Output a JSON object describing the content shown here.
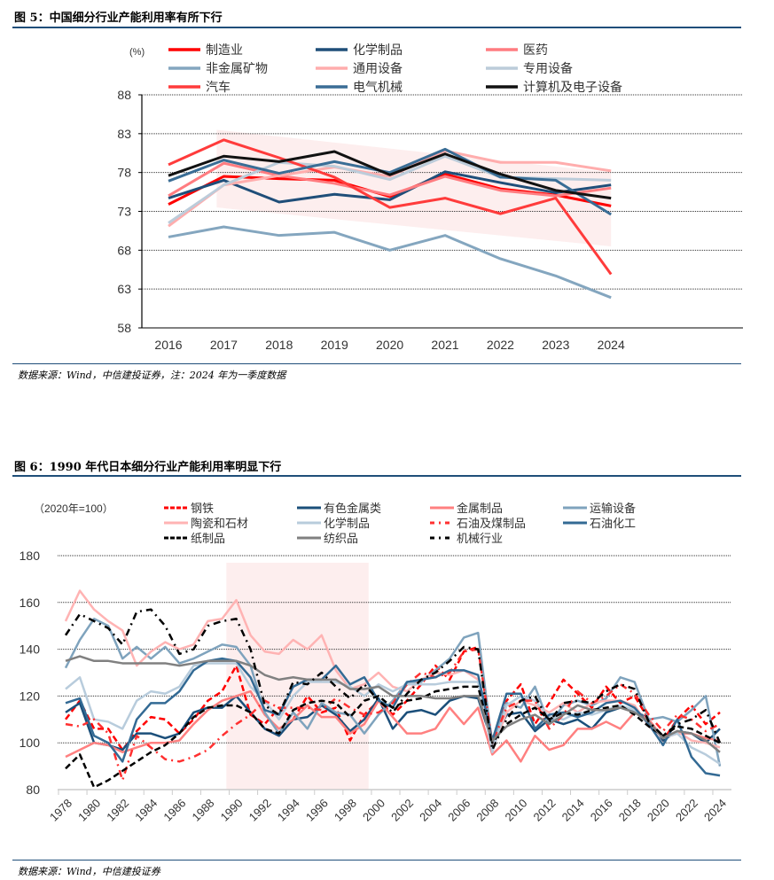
{
  "figure5": {
    "title": "图 5：中国细分行业产能利用率有所下行",
    "source": "数据来源：Wind，中信建投证券，注：2024 年为一季度数据"
  },
  "figure6": {
    "title": "图 6：1990 年代日本细分行业产能利用率明显下行",
    "source": "数据来源：Wind，中信建投证券"
  },
  "chart_data": [
    {
      "type": "line",
      "unit_label": "(%)",
      "x": [
        2016,
        2017,
        2018,
        2019,
        2020,
        2021,
        2022,
        2023,
        2024
      ],
      "ylim": [
        58,
        88
      ],
      "yticks": [
        58,
        63,
        68,
        73,
        78,
        83,
        88
      ],
      "grid": true,
      "legend_placement": "top",
      "shaded_band": {
        "x": [
          2017,
          2024
        ],
        "upper": [
          83.5,
          78
        ],
        "lower": [
          73.5,
          68.5
        ],
        "color": "#FDEEEE"
      },
      "series": [
        {
          "name": "制造业",
          "color": "#FF0000",
          "style": "solid",
          "values": [
            73.9,
            77.5,
            77.2,
            77.0,
            74.9,
            77.8,
            75.9,
            75.1,
            73.7
          ]
        },
        {
          "name": "化学制品",
          "color": "#1F4E79",
          "style": "solid",
          "values": [
            74.7,
            77.0,
            74.2,
            75.2,
            74.5,
            78.1,
            76.7,
            75.4,
            76.4
          ]
        },
        {
          "name": "医药",
          "color": "#FF7C80",
          "style": "solid",
          "values": [
            75.0,
            79.2,
            77.6,
            76.6,
            75.1,
            77.5,
            75.7,
            75.0,
            76.0
          ]
        },
        {
          "name": "非金属矿物",
          "color": "#84A6BF",
          "style": "solid",
          "values": [
            69.7,
            71.0,
            69.9,
            70.3,
            68.0,
            69.9,
            66.9,
            64.7,
            61.9
          ]
        },
        {
          "name": "通用设备",
          "color": "#FFADAD",
          "style": "solid",
          "values": [
            71.1,
            76.4,
            77.6,
            78.7,
            77.5,
            80.8,
            79.3,
            79.3,
            78.2
          ]
        },
        {
          "name": "专用设备",
          "color": "#BCCCDA",
          "style": "solid",
          "values": [
            71.5,
            76.4,
            79.3,
            78.8,
            77.1,
            80.1,
            77.4,
            77.2,
            77.0
          ]
        },
        {
          "name": "汽车",
          "color": "#FF3B3B",
          "style": "solid",
          "values": [
            79.0,
            82.2,
            79.9,
            77.4,
            73.5,
            74.7,
            72.7,
            74.7,
            64.9
          ]
        },
        {
          "name": "电气机械",
          "color": "#3A6D95",
          "style": "solid",
          "values": [
            76.9,
            79.6,
            77.9,
            79.4,
            78.0,
            81.0,
            77.4,
            77.0,
            72.6
          ]
        },
        {
          "name": "计算机及电子设备",
          "color": "#111111",
          "style": "solid",
          "values": [
            77.6,
            80.1,
            79.4,
            80.7,
            77.7,
            80.4,
            77.8,
            75.7,
            74.7
          ]
        }
      ]
    },
    {
      "type": "line",
      "unit_label": "（2020年=100）",
      "x_start": 1978,
      "x_end": 2024,
      "xticks": [
        1978,
        1980,
        1982,
        1984,
        1986,
        1988,
        1990,
        1992,
        1994,
        1996,
        1998,
        2000,
        2002,
        2004,
        2006,
        2008,
        2010,
        2012,
        2014,
        2016,
        2018,
        2020,
        2022,
        2024
      ],
      "ylim": [
        80,
        180
      ],
      "yticks": [
        80,
        100,
        120,
        140,
        160,
        180
      ],
      "grid": true,
      "legend_placement": "top",
      "shaded_band": {
        "x": [
          1989.3,
          1999.3
        ],
        "color": "#FDEEEE"
      },
      "series": [
        {
          "name": "钢铁",
          "color": "#FF0000",
          "style": "dashed",
          "values": [
            110,
            118,
            106,
            106,
            97,
            105,
            111,
            110,
            104,
            110,
            118,
            122,
            133,
            112,
            108,
            115,
            110,
            120,
            113,
            115,
            101,
            112,
            118,
            112,
            118,
            125,
            133,
            127,
            139,
            141,
            100,
            118,
            125,
            108,
            117,
            127,
            121,
            115,
            124,
            117,
            120,
            110,
            101,
            110,
            116,
            108,
            113
          ]
        },
        {
          "name": "有色金属类",
          "color": "#1B4F7A",
          "style": "solid",
          "values": [
            113,
            117,
            100,
            99,
            97,
            104,
            104,
            102,
            104,
            113,
            115,
            115,
            120,
            113,
            106,
            103,
            110,
            111,
            116,
            112,
            105,
            110,
            119,
            106,
            113,
            114,
            112,
            118,
            120,
            119,
            100,
            112,
            113,
            105,
            110,
            108,
            110,
            106,
            113,
            115,
            114,
            110,
            101,
            105,
            104,
            100,
            106
          ]
        },
        {
          "name": "金属制品",
          "color": "#FF8080",
          "style": "solid",
          "values": [
            94,
            97,
            100,
            99,
            96,
            98,
            100,
            100,
            101,
            108,
            114,
            118,
            120,
            122,
            112,
            106,
            110,
            116,
            111,
            111,
            104,
            108,
            118,
            111,
            104,
            104,
            106,
            115,
            108,
            115,
            95,
            101,
            92,
            103,
            97,
            99,
            106,
            106,
            109,
            106,
            113,
            110,
            102,
            104,
            104,
            102,
            101
          ]
        },
        {
          "name": "运输设备",
          "color": "#7FA3BD",
          "style": "solid",
          "values": [
            132,
            144,
            153,
            150,
            136,
            141,
            136,
            141,
            134,
            136,
            139,
            142,
            141,
            133,
            113,
            104,
            113,
            106,
            117,
            113,
            112,
            104,
            112,
            118,
            126,
            126,
            131,
            136,
            145,
            147,
            99,
            117,
            115,
            124,
            108,
            116,
            118,
            116,
            119,
            128,
            126,
            110,
            111,
            109,
            114,
            120,
            90
          ]
        },
        {
          "name": "陶瓷和石材",
          "color": "#FFB3B3",
          "style": "solid",
          "values": [
            152,
            165,
            157,
            152,
            148,
            133,
            139,
            143,
            140,
            142,
            152,
            153,
            161,
            146,
            139,
            138,
            144,
            140,
            146,
            131,
            123,
            125,
            130,
            124,
            122,
            127,
            130,
            129,
            131,
            127,
            97,
            113,
            118,
            116,
            113,
            117,
            113,
            117,
            118,
            118,
            116,
            107,
            102,
            105,
            101,
            100,
            98
          ]
        },
        {
          "name": "化学制品",
          "color": "#B8CCDC",
          "style": "solid",
          "values": [
            123,
            128,
            110,
            109,
            106,
            118,
            122,
            121,
            124,
            133,
            134,
            134,
            134,
            124,
            118,
            110,
            120,
            126,
            126,
            126,
            124,
            120,
            125,
            122,
            125,
            125,
            125,
            126,
            126,
            126,
            96,
            116,
            120,
            118,
            111,
            110,
            113,
            112,
            114,
            116,
            114,
            108,
            102,
            104,
            98,
            95,
            91
          ]
        },
        {
          "name": "石油及煤制品",
          "color": "#FF3030",
          "style": "dashdot",
          "values": [
            108,
            107,
            110,
            104,
            84,
            103,
            98,
            93,
            92,
            94,
            97,
            103,
            108,
            112,
            118,
            115,
            115,
            115,
            114,
            119,
            115,
            112,
            113,
            117,
            125,
            130,
            128,
            130,
            139,
            140,
            100,
            115,
            118,
            118,
            106,
            112,
            122,
            117,
            120,
            125,
            121,
            112,
            105,
            112,
            110,
            105,
            108
          ]
        },
        {
          "name": "石油化工",
          "color": "#336A94",
          "style": "solid",
          "values": [
            117,
            119,
            103,
            100,
            92,
            110,
            117,
            117,
            122,
            131,
            135,
            136,
            135,
            128,
            114,
            112,
            124,
            127,
            127,
            133,
            125,
            128,
            118,
            115,
            126,
            127,
            128,
            131,
            131,
            129,
            101,
            121,
            121,
            106,
            112,
            113,
            111,
            113,
            117,
            118,
            115,
            108,
            99,
            110,
            94,
            87,
            86
          ]
        },
        {
          "name": "纸制品",
          "color": "#000000",
          "style": "dashed",
          "values": [
            89,
            95,
            81,
            84,
            88,
            92,
            96,
            99,
            104,
            111,
            115,
            116,
            116,
            113,
            106,
            104,
            114,
            117,
            118,
            117,
            111,
            118,
            120,
            115,
            118,
            119,
            122,
            123,
            124,
            124,
            100,
            108,
            112,
            115,
            110,
            113,
            112,
            114,
            115,
            116,
            112,
            107,
            103,
            107,
            106,
            103,
            100
          ]
        },
        {
          "name": "纺织品",
          "color": "#808080",
          "style": "solid",
          "values": [
            135,
            137,
            135,
            135,
            134,
            134,
            134,
            134,
            133,
            134,
            135,
            135,
            135,
            133,
            129,
            127,
            128,
            127,
            127,
            127,
            123,
            123,
            124,
            120,
            120,
            120,
            119,
            119,
            120,
            120,
            101,
            107,
            110,
            112,
            108,
            112,
            116,
            114,
            114,
            115,
            113,
            109,
            102,
            105,
            104,
            101,
            96
          ]
        },
        {
          "name": "机械行业",
          "color": "#000000",
          "style": "dashdot",
          "values": [
            146,
            155,
            152,
            149,
            142,
            156,
            157,
            150,
            138,
            140,
            150,
            152,
            153,
            140,
            116,
            112,
            126,
            125,
            130,
            124,
            119,
            125,
            118,
            113,
            121,
            127,
            130,
            135,
            141,
            140,
            97,
            110,
            118,
            120,
            109,
            117,
            118,
            117,
            122,
            125,
            123,
            109,
            103,
            108,
            110,
            114,
            100
          ]
        }
      ]
    }
  ]
}
